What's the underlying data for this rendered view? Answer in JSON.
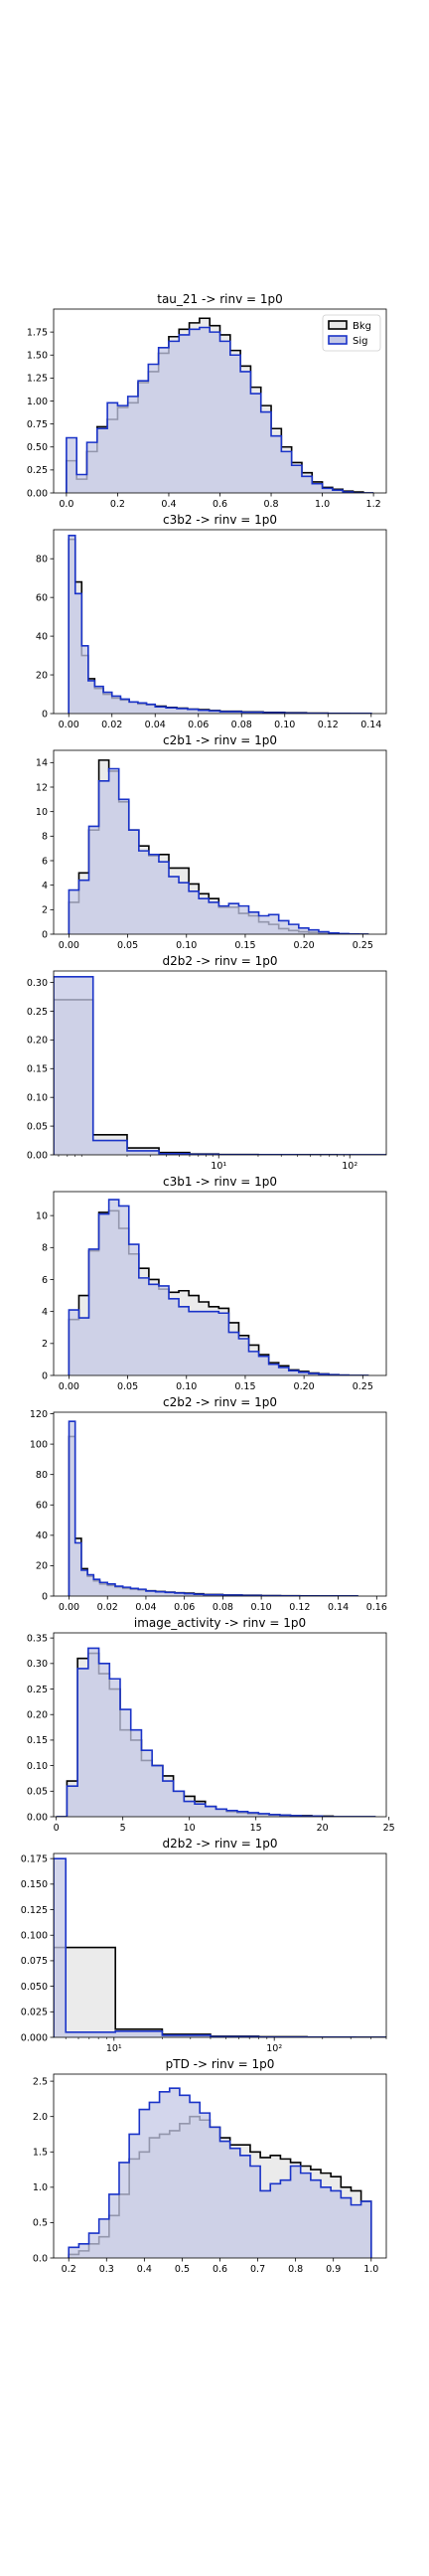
{
  "chart_data": [
    {
      "type": "histogram",
      "title": "tau_21 -> rinv = 1p0",
      "xlim": [
        -0.05,
        1.25
      ],
      "ylim": [
        0,
        2.0
      ],
      "xscale": "linear",
      "xticks": [
        "0.0",
        "0.2",
        "0.4",
        "0.6",
        "0.8",
        "1.0",
        "1.2"
      ],
      "xtick_values": [
        0.0,
        0.2,
        0.4,
        0.6,
        0.8,
        1.0,
        1.2
      ],
      "yticks": [
        "0.00",
        "0.25",
        "0.50",
        "0.75",
        "1.00",
        "1.25",
        "1.50",
        "1.75"
      ],
      "ytick_values": [
        0,
        0.25,
        0.5,
        0.75,
        1.0,
        1.25,
        1.5,
        1.75
      ],
      "legend": {
        "placement": "top-right",
        "entries": [
          "Bkg",
          "Sig"
        ]
      },
      "bin_edges": [
        0.0,
        0.04,
        0.08,
        0.12,
        0.16,
        0.2,
        0.24,
        0.28,
        0.32,
        0.36,
        0.4,
        0.44,
        0.48,
        0.52,
        0.56,
        0.6,
        0.64,
        0.68,
        0.72,
        0.76,
        0.8,
        0.84,
        0.88,
        0.92,
        0.96,
        1.0,
        1.04,
        1.08,
        1.12,
        1.16,
        1.2
      ],
      "series": [
        {
          "name": "Bkg",
          "values": [
            0.35,
            0.15,
            0.45,
            0.72,
            0.8,
            0.93,
            0.98,
            1.2,
            1.32,
            1.52,
            1.7,
            1.78,
            1.85,
            1.9,
            1.82,
            1.72,
            1.55,
            1.38,
            1.15,
            0.95,
            0.7,
            0.5,
            0.33,
            0.22,
            0.12,
            0.06,
            0.04,
            0.02,
            0.01,
            0.0
          ]
        },
        {
          "name": "Sig",
          "values": [
            0.6,
            0.2,
            0.55,
            0.7,
            0.98,
            0.95,
            1.05,
            1.22,
            1.4,
            1.58,
            1.65,
            1.72,
            1.78,
            1.8,
            1.75,
            1.65,
            1.5,
            1.32,
            1.08,
            0.88,
            0.62,
            0.45,
            0.3,
            0.18,
            0.1,
            0.05,
            0.03,
            0.01,
            0.0,
            0.0
          ]
        }
      ]
    },
    {
      "type": "histogram",
      "title": "c3b2 -> rinv = 1p0",
      "xlim": [
        -0.007,
        0.147
      ],
      "ylim": [
        0,
        95
      ],
      "xscale": "linear",
      "xticks": [
        "0.00",
        "0.02",
        "0.04",
        "0.06",
        "0.08",
        "0.10",
        "0.12",
        "0.14"
      ],
      "xtick_values": [
        0.0,
        0.02,
        0.04,
        0.06,
        0.08,
        0.1,
        0.12,
        0.14
      ],
      "yticks": [
        "0",
        "20",
        "40",
        "60",
        "80"
      ],
      "ytick_values": [
        0,
        20,
        40,
        60,
        80
      ],
      "bin_edges": [
        0.0,
        0.003,
        0.006,
        0.009,
        0.012,
        0.016,
        0.02,
        0.024,
        0.028,
        0.032,
        0.036,
        0.04,
        0.045,
        0.05,
        0.055,
        0.06,
        0.065,
        0.07,
        0.08,
        0.09,
        0.1,
        0.11,
        0.12,
        0.13,
        0.14
      ],
      "series": [
        {
          "name": "Bkg",
          "values": [
            90,
            68,
            30,
            18,
            13,
            10,
            8,
            7,
            6,
            5,
            4.5,
            3.8,
            3.2,
            2.8,
            2.3,
            2.0,
            1.6,
            1.2,
            0.9,
            0.6,
            0.4,
            0.2,
            0.1,
            0.05
          ]
        },
        {
          "name": "Sig",
          "values": [
            92,
            62,
            35,
            17,
            14,
            11,
            9,
            7.5,
            6,
            5.5,
            4.8,
            3.5,
            3.0,
            2.6,
            2.2,
            1.7,
            1.4,
            1.0,
            0.7,
            0.4,
            0.2,
            0.1,
            0.05,
            0.02
          ]
        }
      ]
    },
    {
      "type": "histogram",
      "title": "c2b1 -> rinv = 1p0",
      "xlim": [
        -0.013,
        0.27
      ],
      "ylim": [
        0,
        15
      ],
      "xscale": "linear",
      "xticks": [
        "0.00",
        "0.05",
        "0.10",
        "0.15",
        "0.20",
        "0.25"
      ],
      "xtick_values": [
        0.0,
        0.05,
        0.1,
        0.15,
        0.2,
        0.25
      ],
      "yticks": [
        "0",
        "2",
        "4",
        "6",
        "8",
        "10",
        "12",
        "14"
      ],
      "ytick_values": [
        0,
        2,
        4,
        6,
        8,
        10,
        12,
        14
      ],
      "bin_edges": [
        0.0,
        0.0085,
        0.017,
        0.0255,
        0.034,
        0.0425,
        0.051,
        0.0595,
        0.068,
        0.0765,
        0.085,
        0.0935,
        0.102,
        0.1105,
        0.119,
        0.1275,
        0.136,
        0.1445,
        0.153,
        0.1615,
        0.17,
        0.1785,
        0.187,
        0.1955,
        0.204,
        0.2125,
        0.221,
        0.2295,
        0.238,
        0.2465,
        0.255
      ],
      "series": [
        {
          "name": "Bkg",
          "values": [
            2.6,
            5.0,
            8.5,
            14.2,
            13.3,
            10.8,
            8.5,
            7.2,
            6.4,
            6.5,
            5.4,
            5.4,
            4.1,
            3.3,
            2.9,
            2.2,
            2.2,
            1.7,
            1.5,
            1.0,
            0.8,
            0.45,
            0.3,
            0.2,
            0.15,
            0.1,
            0.05,
            0.02,
            0.0,
            0.0
          ]
        },
        {
          "name": "Sig",
          "values": [
            3.6,
            4.4,
            8.8,
            12.5,
            13.5,
            11.0,
            8.5,
            6.8,
            6.5,
            5.9,
            4.7,
            4.2,
            3.5,
            2.9,
            2.6,
            2.3,
            2.5,
            2.3,
            1.8,
            1.5,
            1.6,
            1.1,
            0.8,
            0.5,
            0.35,
            0.2,
            0.1,
            0.05,
            0.02,
            0.0
          ]
        }
      ]
    },
    {
      "type": "histogram",
      "title": "d2b2 -> rinv = 1p0",
      "xlim": [
        0.55,
        190
      ],
      "ylim": [
        0,
        0.32
      ],
      "xscale": "log",
      "xticks": [
        "10¹",
        "10²"
      ],
      "xtick_values": [
        10,
        100
      ],
      "yticks": [
        "0.00",
        "0.05",
        "0.10",
        "0.15",
        "0.20",
        "0.25",
        "0.30"
      ],
      "ytick_values": [
        0,
        0.05,
        0.1,
        0.15,
        0.2,
        0.25,
        0.3
      ],
      "bin_edges": [
        0.55,
        1.1,
        2.0,
        3.5,
        6.0,
        10.0,
        20.0,
        40.0,
        80.0,
        190.0
      ],
      "series": [
        {
          "name": "Bkg",
          "values": [
            0.27,
            0.035,
            0.012,
            0.004,
            0.0015,
            0.0005,
            0.0002,
            0.0001,
            0.0
          ]
        },
        {
          "name": "Sig",
          "values": [
            0.31,
            0.025,
            0.007,
            0.002,
            0.0007,
            0.0002,
            0.0001,
            0.0,
            0.0
          ]
        }
      ]
    },
    {
      "type": "histogram",
      "title": "c3b1 -> rinv = 1p0",
      "xlim": [
        -0.013,
        0.27
      ],
      "ylim": [
        0,
        11.5
      ],
      "xscale": "linear",
      "xticks": [
        "0.00",
        "0.05",
        "0.10",
        "0.15",
        "0.20",
        "0.25"
      ],
      "xtick_values": [
        0.0,
        0.05,
        0.1,
        0.15,
        0.2,
        0.25
      ],
      "yticks": [
        "0",
        "2",
        "4",
        "6",
        "8",
        "10"
      ],
      "ytick_values": [
        0,
        2,
        4,
        6,
        8,
        10
      ],
      "bin_edges": [
        0.0,
        0.0085,
        0.017,
        0.0255,
        0.034,
        0.0425,
        0.051,
        0.0595,
        0.068,
        0.0765,
        0.085,
        0.0935,
        0.102,
        0.1105,
        0.119,
        0.1275,
        0.136,
        0.1445,
        0.153,
        0.1615,
        0.17,
        0.1785,
        0.187,
        0.1955,
        0.204,
        0.2125,
        0.221,
        0.2295,
        0.238,
        0.2465,
        0.255
      ],
      "series": [
        {
          "name": "Bkg",
          "values": [
            3.5,
            5.0,
            7.8,
            10.2,
            10.3,
            9.2,
            7.6,
            6.7,
            6.0,
            5.4,
            5.2,
            5.3,
            5.0,
            4.6,
            4.3,
            4.2,
            3.3,
            2.5,
            1.9,
            1.3,
            0.8,
            0.6,
            0.35,
            0.25,
            0.15,
            0.1,
            0.05,
            0.02,
            0.0,
            0.0
          ]
        },
        {
          "name": "Sig",
          "values": [
            4.1,
            3.6,
            7.9,
            10.1,
            11.0,
            10.6,
            8.2,
            6.1,
            5.7,
            5.6,
            4.8,
            4.3,
            4.0,
            4.0,
            4.0,
            3.9,
            2.7,
            2.3,
            1.5,
            1.2,
            0.7,
            0.5,
            0.3,
            0.2,
            0.12,
            0.08,
            0.04,
            0.02,
            0.0,
            0.0
          ]
        }
      ]
    },
    {
      "type": "histogram",
      "title": "c2b2 -> rinv = 1p0",
      "xlim": [
        -0.008,
        0.165
      ],
      "ylim": [
        0,
        121
      ],
      "xscale": "linear",
      "xticks": [
        "0.00",
        "0.02",
        "0.04",
        "0.06",
        "0.08",
        "0.10",
        "0.12",
        "0.14",
        "0.16"
      ],
      "xtick_values": [
        0.0,
        0.02,
        0.04,
        0.06,
        0.08,
        0.1,
        0.12,
        0.14,
        0.16
      ],
      "yticks": [
        "0",
        "20",
        "40",
        "60",
        "80",
        "100",
        "120"
      ],
      "ytick_values": [
        0,
        20,
        40,
        60,
        80,
        100,
        120
      ],
      "bin_edges": [
        0.0,
        0.0032,
        0.0064,
        0.0096,
        0.0128,
        0.016,
        0.02,
        0.024,
        0.028,
        0.032,
        0.036,
        0.04,
        0.045,
        0.05,
        0.055,
        0.06,
        0.065,
        0.07,
        0.08,
        0.09,
        0.1,
        0.11,
        0.12,
        0.13,
        0.14,
        0.15
      ],
      "series": [
        {
          "name": "Bkg",
          "values": [
            105,
            38,
            18,
            13,
            10,
            8,
            7,
            6,
            5,
            4.5,
            4,
            3.5,
            3,
            2.6,
            2.2,
            1.9,
            1.5,
            1.0,
            0.7,
            0.5,
            0.3,
            0.2,
            0.1,
            0.05,
            0.02
          ]
        },
        {
          "name": "Sig",
          "values": [
            115,
            35,
            17,
            14,
            11,
            9,
            8,
            6.5,
            5.8,
            5,
            4.5,
            3.3,
            2.8,
            2.4,
            2.0,
            1.6,
            1.2,
            0.9,
            0.6,
            0.4,
            0.2,
            0.1,
            0.05,
            0.02,
            0.01
          ]
        }
      ]
    },
    {
      "type": "histogram",
      "title": "image_activity -> rinv = 1p0",
      "xlim": [
        -0.2,
        24.8
      ],
      "ylim": [
        0,
        0.36
      ],
      "xscale": "linear",
      "xticks": [
        "0",
        "5",
        "10",
        "15",
        "20",
        "25"
      ],
      "xtick_values": [
        0,
        5,
        10,
        15,
        20,
        25
      ],
      "yticks": [
        "0.00",
        "0.05",
        "0.10",
        "0.15",
        "0.20",
        "0.25",
        "0.30",
        "0.35"
      ],
      "ytick_values": [
        0,
        0.05,
        0.1,
        0.15,
        0.2,
        0.25,
        0.3,
        0.35
      ],
      "bin_edges": [
        0,
        0.8,
        1.6,
        2.4,
        3.2,
        4.0,
        4.8,
        5.6,
        6.4,
        7.2,
        8.0,
        8.8,
        9.6,
        10.4,
        11.2,
        12.0,
        12.8,
        13.6,
        14.4,
        15.2,
        16.0,
        16.8,
        17.6,
        18.4,
        19.2,
        20.0,
        20.8,
        21.6,
        22.4,
        23.2,
        24.0
      ],
      "series": [
        {
          "name": "Bkg",
          "values": [
            0.0,
            0.07,
            0.31,
            0.32,
            0.28,
            0.25,
            0.17,
            0.15,
            0.11,
            0.1,
            0.08,
            0.05,
            0.04,
            0.03,
            0.02,
            0.015,
            0.01,
            0.008,
            0.006,
            0.005,
            0.004,
            0.003,
            0.002,
            0.002,
            0.001,
            0.001,
            0.0,
            0.0,
            0.0,
            0.0
          ]
        },
        {
          "name": "Sig",
          "values": [
            0.0,
            0.06,
            0.29,
            0.33,
            0.3,
            0.27,
            0.21,
            0.17,
            0.13,
            0.1,
            0.07,
            0.05,
            0.03,
            0.025,
            0.02,
            0.015,
            0.012,
            0.01,
            0.008,
            0.006,
            0.004,
            0.003,
            0.002,
            0.001,
            0.001,
            0.0,
            0.0,
            0.0,
            0.0,
            0.0
          ]
        }
      ]
    },
    {
      "type": "histogram",
      "title": "d2b2 -> rinv = 1p0",
      "xlim": [
        4.2,
        500
      ],
      "ylim": [
        0,
        0.18
      ],
      "xscale": "log",
      "xticks": [
        "10¹",
        "10²"
      ],
      "xtick_values": [
        10,
        100
      ],
      "yticks": [
        "0.000",
        "0.025",
        "0.050",
        "0.075",
        "0.100",
        "0.125",
        "0.150",
        "0.175"
      ],
      "ytick_values": [
        0,
        0.025,
        0.05,
        0.075,
        0.1,
        0.125,
        0.15,
        0.175
      ],
      "bin_edges": [
        4.2,
        5.0,
        10.2,
        20.0,
        40.0,
        80.0,
        160.0,
        320.0,
        500.0
      ],
      "series": [
        {
          "name": "Bkg",
          "values": [
            0.088,
            0.088,
            0.008,
            0.003,
            0.001,
            0.0005,
            0.0002,
            0.0001
          ]
        },
        {
          "name": "Sig",
          "values": [
            0.175,
            0.005,
            0.006,
            0.002,
            0.0006,
            0.0002,
            0.0001,
            0.0
          ]
        }
      ]
    },
    {
      "type": "histogram",
      "title": "pTD -> rinv = 1p0",
      "xlim": [
        0.16,
        1.04
      ],
      "ylim": [
        0,
        2.6
      ],
      "xscale": "linear",
      "xticks": [
        "0.2",
        "0.3",
        "0.4",
        "0.5",
        "0.6",
        "0.7",
        "0.8",
        "0.9",
        "1.0"
      ],
      "xtick_values": [
        0.2,
        0.3,
        0.4,
        0.5,
        0.6,
        0.7,
        0.8,
        0.9,
        1.0
      ],
      "yticks": [
        "0.0",
        "0.5",
        "1.0",
        "1.5",
        "2.0",
        "2.5"
      ],
      "ytick_values": [
        0,
        0.5,
        1.0,
        1.5,
        2.0,
        2.5
      ],
      "bin_edges": [
        0.2,
        0.2267,
        0.2533,
        0.28,
        0.3067,
        0.3333,
        0.36,
        0.3867,
        0.4133,
        0.44,
        0.4667,
        0.4933,
        0.52,
        0.5467,
        0.5733,
        0.6,
        0.6267,
        0.6533,
        0.68,
        0.7067,
        0.7333,
        0.76,
        0.7867,
        0.8133,
        0.84,
        0.8667,
        0.8933,
        0.92,
        0.9467,
        0.9733,
        1.0
      ],
      "series": [
        {
          "name": "Bkg",
          "values": [
            0.05,
            0.1,
            0.2,
            0.3,
            0.6,
            0.9,
            1.4,
            1.5,
            1.7,
            1.75,
            1.8,
            1.9,
            2.0,
            1.95,
            1.85,
            1.7,
            1.6,
            1.6,
            1.5,
            1.42,
            1.45,
            1.4,
            1.35,
            1.3,
            1.25,
            1.2,
            1.15,
            1.0,
            0.95,
            0.8
          ]
        },
        {
          "name": "Sig",
          "values": [
            0.15,
            0.2,
            0.35,
            0.55,
            0.9,
            1.35,
            1.75,
            2.1,
            2.2,
            2.35,
            2.4,
            2.3,
            2.2,
            2.05,
            1.85,
            1.65,
            1.55,
            1.45,
            1.3,
            0.95,
            1.05,
            1.1,
            1.3,
            1.2,
            1.1,
            1.0,
            0.95,
            0.85,
            0.75,
            0.8
          ]
        }
      ]
    }
  ],
  "colors": {
    "bkg_line": "#000000",
    "bkg_fill": "#e8e8e8",
    "sig_line": "#1a33c8",
    "sig_fill": "#c4c8e6"
  }
}
